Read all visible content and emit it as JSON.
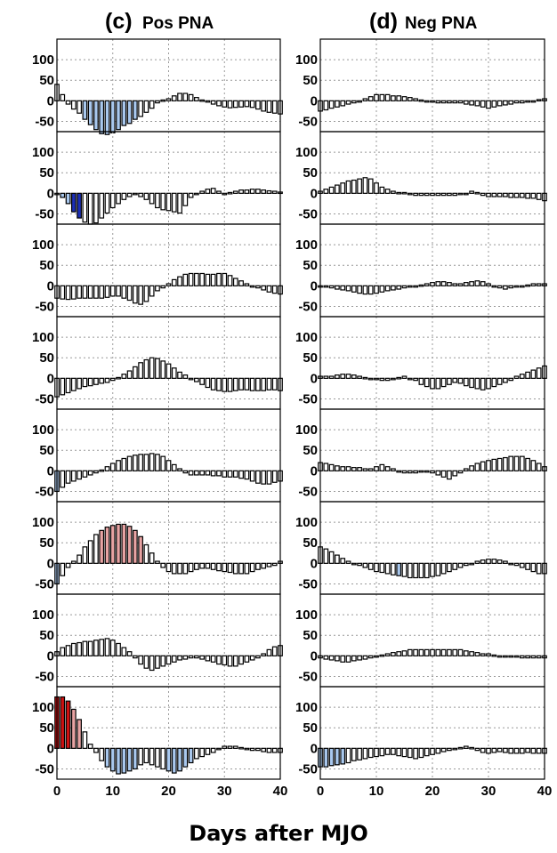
{
  "figure": {
    "xlabel": "Days after MJO"
  },
  "chart_data": [
    {
      "type": "bar",
      "panel_letter": "(c)",
      "title": "Pos PNA",
      "xticks": [
        0,
        10,
        20,
        30,
        40
      ],
      "yticks": [
        100,
        50,
        0,
        -50
      ],
      "xlim": [
        0,
        40
      ],
      "ylim": [
        -75,
        150
      ],
      "grid": true,
      "x": [
        0,
        1,
        2,
        3,
        4,
        5,
        6,
        7,
        8,
        9,
        10,
        11,
        12,
        13,
        14,
        15,
        16,
        17,
        18,
        19,
        20,
        21,
        22,
        23,
        24,
        25,
        26,
        27,
        28,
        29,
        30,
        31,
        32,
        33,
        34,
        35,
        36,
        37,
        38,
        39,
        40
      ],
      "colors": {
        "white": "#ffffff",
        "light_blue": "#a9c8ee",
        "dark_blue": "#1c2fb8",
        "light_red": "#e8a3a3",
        "dark_red": "#cc1111"
      },
      "series": [
        {
          "values": [
            40,
            15,
            -8,
            -20,
            -30,
            -45,
            -58,
            -70,
            -80,
            -82,
            -78,
            -70,
            -60,
            -55,
            -45,
            -38,
            -28,
            -18,
            -5,
            2,
            5,
            12,
            18,
            18,
            15,
            8,
            2,
            -3,
            -8,
            -12,
            -15,
            -17,
            -16,
            -15,
            -14,
            -16,
            -20,
            -25,
            -28,
            -30,
            -32
          ],
          "shading": {
            "light_blue": [
              [
                5,
                15
              ]
            ]
          }
        },
        {
          "values": [
            0,
            -10,
            -25,
            -45,
            -60,
            -70,
            -75,
            -72,
            -60,
            -48,
            -35,
            -25,
            -15,
            -8,
            -2,
            -8,
            -15,
            -25,
            -35,
            -40,
            -42,
            -45,
            -48,
            -30,
            -10,
            -2,
            5,
            10,
            12,
            5,
            -2,
            2,
            5,
            8,
            8,
            10,
            10,
            8,
            6,
            5,
            3
          ],
          "shading": {
            "light_blue": [
              [
                1,
                5
              ]
            ],
            "dark_blue": [
              [
                3,
                5
              ]
            ]
          }
        },
        {
          "values": [
            -30,
            -32,
            -33,
            -32,
            -30,
            -30,
            -30,
            -30,
            -30,
            -28,
            -25,
            -25,
            -30,
            -35,
            -42,
            -45,
            -38,
            -25,
            -12,
            -5,
            5,
            15,
            22,
            28,
            30,
            30,
            30,
            28,
            28,
            30,
            30,
            25,
            18,
            12,
            5,
            -2,
            -5,
            -10,
            -15,
            -18,
            -20
          ],
          "shading": {}
        },
        {
          "values": [
            -45,
            -40,
            -35,
            -30,
            -25,
            -20,
            -18,
            -15,
            -12,
            -10,
            -5,
            2,
            10,
            18,
            28,
            38,
            45,
            50,
            48,
            42,
            35,
            25,
            15,
            8,
            0,
            -8,
            -15,
            -22,
            -28,
            -30,
            -32,
            -32,
            -30,
            -28,
            -28,
            -30,
            -30,
            -30,
            -28,
            -28,
            -30
          ],
          "shading": {}
        },
        {
          "values": [
            -50,
            -40,
            -30,
            -25,
            -20,
            -15,
            -10,
            -5,
            2,
            10,
            18,
            25,
            30,
            35,
            38,
            40,
            40,
            42,
            40,
            35,
            25,
            15,
            5,
            -5,
            -10,
            -10,
            -10,
            -10,
            -12,
            -12,
            -15,
            -15,
            -15,
            -18,
            -20,
            -25,
            -30,
            -32,
            -32,
            -28,
            -25
          ],
          "shading": {
            "light_blue": [
              [
                0,
                1
              ]
            ]
          }
        },
        {
          "values": [
            -50,
            -30,
            -10,
            5,
            20,
            40,
            55,
            70,
            80,
            88,
            92,
            95,
            95,
            90,
            80,
            65,
            45,
            25,
            5,
            -10,
            -20,
            -25,
            -25,
            -25,
            -20,
            -15,
            -12,
            -12,
            -15,
            -18,
            -20,
            -22,
            -25,
            -25,
            -25,
            -20,
            -15,
            -12,
            -8,
            -5,
            5
          ],
          "shading": {
            "light_blue": [
              [
                0,
                1
              ]
            ],
            "light_red": [
              [
                8,
                16
              ]
            ]
          }
        },
        {
          "values": [
            10,
            20,
            25,
            30,
            32,
            35,
            35,
            38,
            40,
            42,
            38,
            30,
            20,
            10,
            -5,
            -20,
            -30,
            -35,
            -30,
            -25,
            -20,
            -15,
            -10,
            -8,
            -5,
            -5,
            -8,
            -12,
            -15,
            -20,
            -22,
            -25,
            -25,
            -20,
            -15,
            -10,
            -5,
            5,
            15,
            22,
            25
          ],
          "shading": {}
        },
        {
          "values": [
            125,
            125,
            115,
            95,
            70,
            40,
            10,
            -10,
            -30,
            -45,
            -55,
            -62,
            -60,
            -55,
            -50,
            -40,
            -35,
            -40,
            -45,
            -50,
            -55,
            -60,
            -55,
            -45,
            -35,
            -25,
            -20,
            -15,
            -10,
            0,
            5,
            5,
            5,
            2,
            0,
            -5,
            -5,
            -8,
            -10,
            -10,
            -10
          ],
          "shading": {
            "dark_red": [
              [
                0,
                3
              ]
            ],
            "light_red": [
              [
                3,
                5
              ]
            ],
            "light_blue": [
              [
                9,
                15
              ],
              [
                20,
                25
              ]
            ]
          }
        }
      ]
    },
    {
      "type": "bar",
      "panel_letter": "(d)",
      "title": "Neg PNA",
      "xticks": [
        0,
        10,
        20,
        30,
        40
      ],
      "yticks": [
        100,
        50,
        0,
        -50
      ],
      "xlim": [
        0,
        40
      ],
      "ylim": [
        -75,
        150
      ],
      "grid": true,
      "x": [
        0,
        1,
        2,
        3,
        4,
        5,
        6,
        7,
        8,
        9,
        10,
        11,
        12,
        13,
        14,
        15,
        16,
        17,
        18,
        19,
        20,
        21,
        22,
        23,
        24,
        25,
        26,
        27,
        28,
        29,
        30,
        31,
        32,
        33,
        34,
        35,
        36,
        37,
        38,
        39,
        40
      ],
      "series": [
        {
          "values": [
            -25,
            -22,
            -18,
            -15,
            -12,
            -8,
            -5,
            0,
            5,
            10,
            15,
            15,
            15,
            12,
            12,
            10,
            8,
            5,
            2,
            0,
            -2,
            -5,
            -5,
            -5,
            -5,
            -5,
            -8,
            -10,
            -12,
            -15,
            -18,
            -15,
            -12,
            -10,
            -8,
            -5,
            -5,
            -3,
            0,
            3,
            5
          ],
          "shading": {}
        },
        {
          "values": [
            5,
            10,
            15,
            20,
            25,
            30,
            32,
            35,
            38,
            35,
            25,
            15,
            10,
            5,
            2,
            2,
            -2,
            -5,
            -5,
            -5,
            -5,
            -5,
            -5,
            -5,
            -5,
            -2,
            0,
            5,
            2,
            -5,
            -8,
            -8,
            -8,
            -8,
            -10,
            -10,
            -10,
            -12,
            -12,
            -15,
            -18
          ],
          "shading": {}
        },
        {
          "values": [
            0,
            -2,
            -5,
            -8,
            -10,
            -12,
            -15,
            -18,
            -20,
            -20,
            -18,
            -15,
            -12,
            -10,
            -8,
            -5,
            -2,
            0,
            2,
            5,
            8,
            10,
            10,
            8,
            5,
            5,
            8,
            10,
            12,
            10,
            5,
            -2,
            -5,
            -8,
            -5,
            -2,
            0,
            2,
            5,
            5,
            5
          ],
          "shading": {}
        },
        {
          "values": [
            5,
            5,
            5,
            8,
            10,
            10,
            8,
            5,
            2,
            0,
            0,
            -5,
            -5,
            -2,
            2,
            5,
            0,
            -5,
            -15,
            -20,
            -25,
            -25,
            -20,
            -15,
            -10,
            -12,
            -18,
            -22,
            -25,
            -28,
            -25,
            -20,
            -15,
            -10,
            -5,
            5,
            10,
            15,
            20,
            25,
            30
          ],
          "shading": {}
        },
        {
          "values": [
            20,
            18,
            15,
            12,
            10,
            10,
            8,
            8,
            5,
            5,
            10,
            15,
            10,
            5,
            0,
            -5,
            -5,
            -5,
            -2,
            -2,
            -5,
            -10,
            -15,
            -20,
            -12,
            -5,
            5,
            12,
            18,
            22,
            25,
            28,
            30,
            32,
            35,
            35,
            35,
            30,
            25,
            18,
            10
          ],
          "shading": {}
        },
        {
          "values": [
            40,
            35,
            28,
            20,
            12,
            5,
            0,
            -5,
            -10,
            -15,
            -20,
            -22,
            -25,
            -28,
            -30,
            -32,
            -35,
            -35,
            -35,
            -35,
            -32,
            -30,
            -25,
            -20,
            -15,
            -10,
            -5,
            0,
            5,
            8,
            10,
            10,
            8,
            5,
            0,
            -5,
            -10,
            -15,
            -20,
            -25,
            -25
          ],
          "shading": {
            "light_blue": [
              [
                14,
                15
              ]
            ]
          }
        },
        {
          "values": [
            -5,
            -8,
            -10,
            -12,
            -15,
            -15,
            -12,
            -10,
            -8,
            -5,
            -2,
            2,
            5,
            8,
            10,
            12,
            15,
            15,
            15,
            15,
            15,
            15,
            15,
            15,
            15,
            15,
            12,
            10,
            8,
            5,
            5,
            2,
            0,
            0,
            -2,
            -2,
            -5,
            -5,
            -5,
            -5,
            -5
          ],
          "shading": {}
        },
        {
          "values": [
            -45,
            -45,
            -42,
            -40,
            -38,
            -35,
            -30,
            -28,
            -25,
            -22,
            -20,
            -18,
            -15,
            -15,
            -18,
            -20,
            -22,
            -25,
            -22,
            -18,
            -15,
            -12,
            -8,
            -5,
            0,
            2,
            5,
            2,
            -5,
            -10,
            -12,
            -10,
            -8,
            -10,
            -12,
            -12,
            -12,
            -10,
            -12,
            -12,
            -12
          ],
          "shading": {
            "light_blue": [
              [
                0,
                5
              ]
            ]
          }
        }
      ]
    }
  ]
}
